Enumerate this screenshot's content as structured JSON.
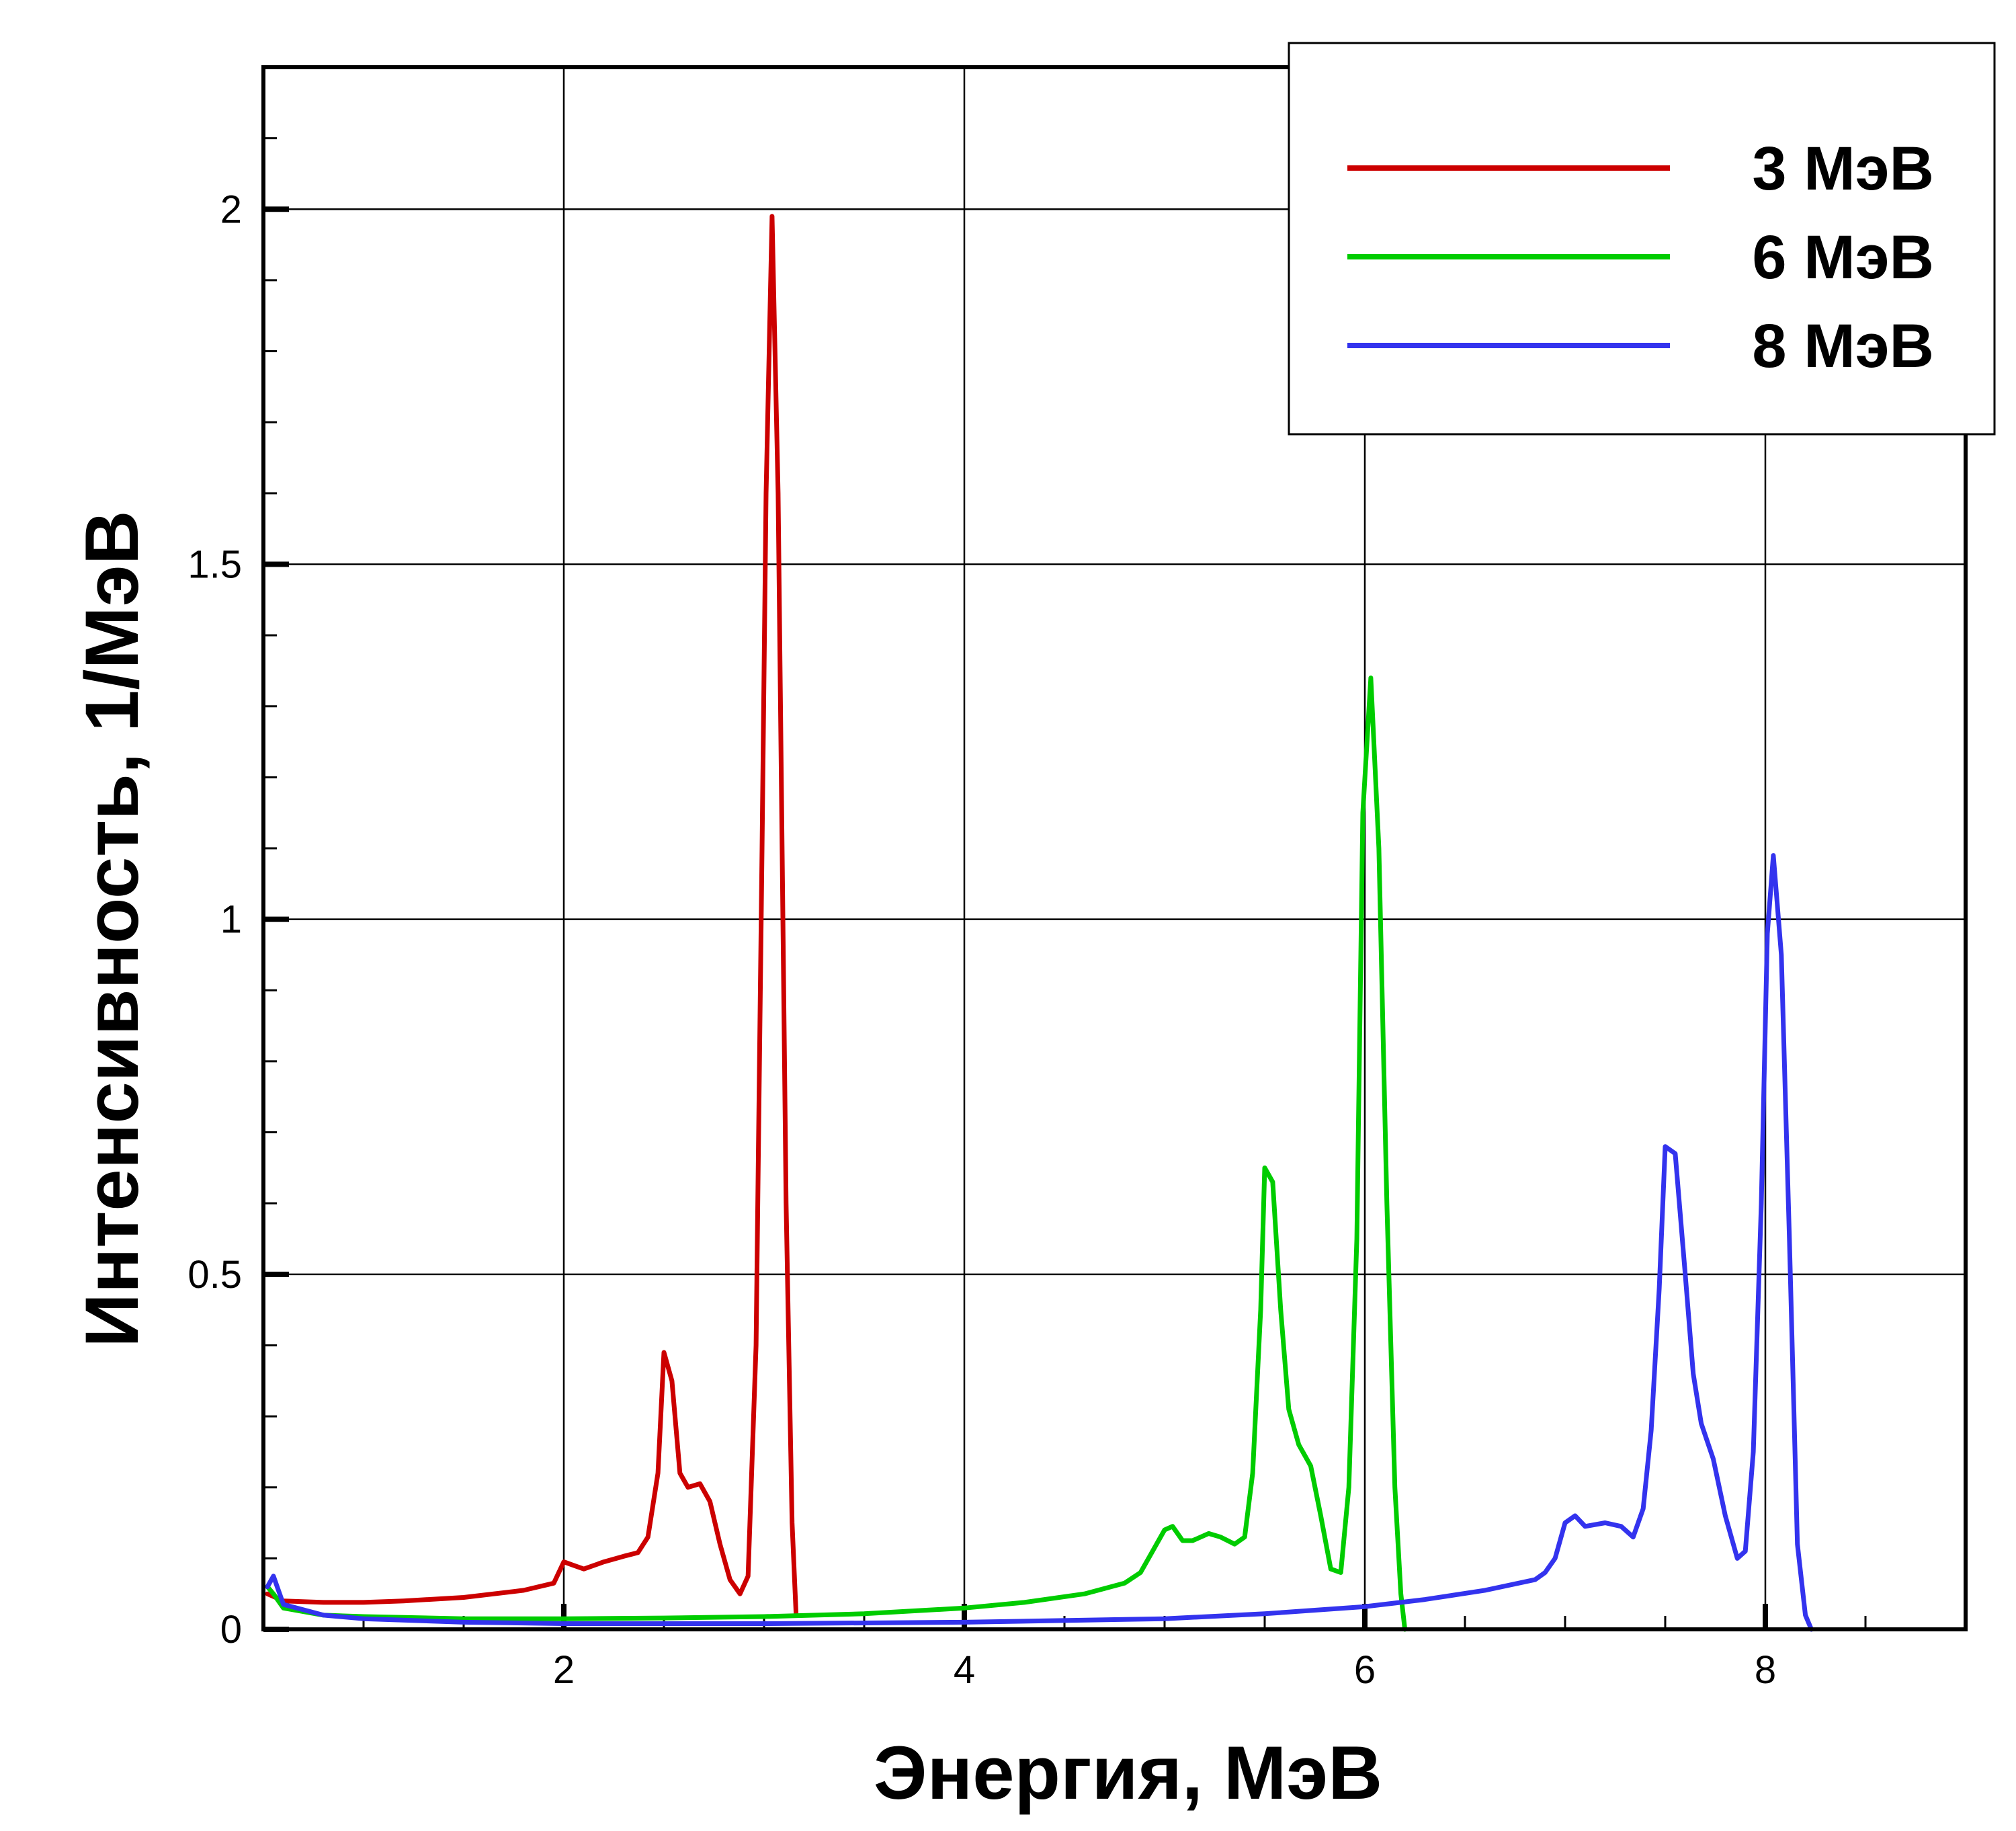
{
  "chart_data": {
    "type": "line",
    "xlabel": "Энергия, МэВ",
    "ylabel": "Интенсивность, 1/МэВ",
    "xlim": [
      0.5,
      9.0
    ],
    "ylim": [
      0,
      2.2
    ],
    "x_ticks": [
      2,
      4,
      6,
      8
    ],
    "x_tick_labels": [
      "2",
      "4",
      "6",
      "8"
    ],
    "y_ticks": [
      0,
      0.5,
      1,
      1.5,
      2
    ],
    "y_tick_labels": [
      "0",
      "0.5",
      "1",
      "1.5",
      "2"
    ],
    "grid": true,
    "legend_position": "top-right",
    "series": [
      {
        "name": "3 МэВ",
        "color": "#cc0000",
        "points": [
          [
            0.52,
            0.05
          ],
          [
            0.6,
            0.04
          ],
          [
            0.8,
            0.038
          ],
          [
            1.0,
            0.038
          ],
          [
            1.2,
            0.04
          ],
          [
            1.5,
            0.045
          ],
          [
            1.8,
            0.055
          ],
          [
            1.95,
            0.065
          ],
          [
            2.0,
            0.095
          ],
          [
            2.05,
            0.09
          ],
          [
            2.1,
            0.085
          ],
          [
            2.2,
            0.095
          ],
          [
            2.3,
            0.103
          ],
          [
            2.37,
            0.108
          ],
          [
            2.42,
            0.13
          ],
          [
            2.47,
            0.22
          ],
          [
            2.5,
            0.39
          ],
          [
            2.54,
            0.35
          ],
          [
            2.58,
            0.22
          ],
          [
            2.62,
            0.2
          ],
          [
            2.68,
            0.205
          ],
          [
            2.73,
            0.18
          ],
          [
            2.78,
            0.12
          ],
          [
            2.83,
            0.07
          ],
          [
            2.88,
            0.05
          ],
          [
            2.92,
            0.075
          ],
          [
            2.96,
            0.4
          ],
          [
            2.99,
            1.1
          ],
          [
            3.01,
            1.6
          ],
          [
            3.04,
            1.99
          ],
          [
            3.07,
            1.6
          ],
          [
            3.11,
            0.6
          ],
          [
            3.14,
            0.15
          ],
          [
            3.16,
            0.02
          ]
        ]
      },
      {
        "name": "6 МэВ",
        "color": "#00cc00",
        "points": [
          [
            0.52,
            0.06
          ],
          [
            0.55,
            0.05
          ],
          [
            0.6,
            0.03
          ],
          [
            0.8,
            0.02
          ],
          [
            1.0,
            0.018
          ],
          [
            1.5,
            0.015
          ],
          [
            2.0,
            0.015
          ],
          [
            2.5,
            0.016
          ],
          [
            3.0,
            0.018
          ],
          [
            3.5,
            0.022
          ],
          [
            4.0,
            0.03
          ],
          [
            4.3,
            0.038
          ],
          [
            4.6,
            0.05
          ],
          [
            4.8,
            0.065
          ],
          [
            4.88,
            0.08
          ],
          [
            4.94,
            0.11
          ],
          [
            5.0,
            0.14
          ],
          [
            5.04,
            0.145
          ],
          [
            5.09,
            0.125
          ],
          [
            5.14,
            0.125
          ],
          [
            5.22,
            0.135
          ],
          [
            5.28,
            0.13
          ],
          [
            5.35,
            0.12
          ],
          [
            5.4,
            0.13
          ],
          [
            5.44,
            0.22
          ],
          [
            5.48,
            0.45
          ],
          [
            5.5,
            0.65
          ],
          [
            5.54,
            0.63
          ],
          [
            5.58,
            0.45
          ],
          [
            5.62,
            0.31
          ],
          [
            5.67,
            0.26
          ],
          [
            5.73,
            0.23
          ],
          [
            5.78,
            0.16
          ],
          [
            5.83,
            0.085
          ],
          [
            5.88,
            0.08
          ],
          [
            5.92,
            0.2
          ],
          [
            5.96,
            0.55
          ],
          [
            5.99,
            1.15
          ],
          [
            6.03,
            1.34
          ],
          [
            6.07,
            1.1
          ],
          [
            6.11,
            0.6
          ],
          [
            6.15,
            0.2
          ],
          [
            6.18,
            0.05
          ],
          [
            6.2,
            0.0
          ]
        ]
      },
      {
        "name": "8 МэВ",
        "color": "#3333ee",
        "points": [
          [
            0.52,
            0.06
          ],
          [
            0.55,
            0.075
          ],
          [
            0.6,
            0.035
          ],
          [
            0.8,
            0.02
          ],
          [
            1.0,
            0.015
          ],
          [
            1.5,
            0.01
          ],
          [
            2.0,
            0.008
          ],
          [
            3.0,
            0.008
          ],
          [
            4.0,
            0.01
          ],
          [
            5.0,
            0.015
          ],
          [
            5.5,
            0.022
          ],
          [
            6.0,
            0.032
          ],
          [
            6.3,
            0.042
          ],
          [
            6.6,
            0.055
          ],
          [
            6.85,
            0.07
          ],
          [
            6.9,
            0.08
          ],
          [
            6.95,
            0.1
          ],
          [
            7.0,
            0.15
          ],
          [
            7.05,
            0.16
          ],
          [
            7.1,
            0.145
          ],
          [
            7.2,
            0.15
          ],
          [
            7.28,
            0.145
          ],
          [
            7.34,
            0.13
          ],
          [
            7.39,
            0.17
          ],
          [
            7.43,
            0.28
          ],
          [
            7.47,
            0.48
          ],
          [
            7.5,
            0.68
          ],
          [
            7.55,
            0.67
          ],
          [
            7.6,
            0.5
          ],
          [
            7.64,
            0.36
          ],
          [
            7.68,
            0.29
          ],
          [
            7.74,
            0.24
          ],
          [
            7.8,
            0.16
          ],
          [
            7.86,
            0.1
          ],
          [
            7.9,
            0.11
          ],
          [
            7.94,
            0.25
          ],
          [
            7.98,
            0.6
          ],
          [
            8.01,
            0.98
          ],
          [
            8.04,
            1.09
          ],
          [
            8.08,
            0.95
          ],
          [
            8.12,
            0.55
          ],
          [
            8.16,
            0.12
          ],
          [
            8.2,
            0.02
          ],
          [
            8.23,
            0.0
          ]
        ]
      }
    ]
  }
}
